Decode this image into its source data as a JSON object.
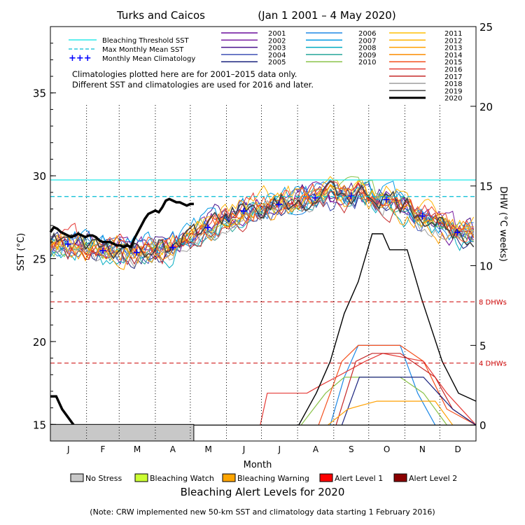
{
  "chart_data": {
    "type": "line",
    "title": "Turks and Caicos",
    "date_range": "(Jan 1 2001 – 4 May 2020)",
    "xlabel": "Month",
    "ylabel_left": "SST (°C)",
    "ylabel_right": "DHW (°C weeks)",
    "x_categories": [
      "J",
      "F",
      "M",
      "A",
      "M",
      "J",
      "J",
      "A",
      "S",
      "O",
      "N",
      "D"
    ],
    "y_left_ticks": [
      15,
      20,
      25,
      30,
      35
    ],
    "ylim_left": [
      14,
      39
    ],
    "y_right_ticks": [
      0,
      5,
      10,
      15,
      20,
      25
    ],
    "ylim_right": [
      -1,
      25
    ],
    "reference_lines": {
      "bleaching_threshold_sst": 29.75,
      "max_monthly_mean_sst": 28.75,
      "dhw_8": 22.4,
      "dhw_4": 18.7,
      "dhw_8_label": "8 DHWs",
      "dhw_4_label": "4 DHWs"
    },
    "legend_left": {
      "threshold": "Bleaching Threshold SST",
      "mmm": "Max Monthly Mean SST",
      "climatology": "Monthly Mean Climatology"
    },
    "notes": [
      "Climatologies plotted here are for 2001–2015 data only.",
      "Different SST and climatologies are used for 2016 and later."
    ],
    "series": [
      {
        "name": "2001",
        "color": "#6a0d9c"
      },
      {
        "name": "2002",
        "color": "#7b1fa2"
      },
      {
        "name": "2003",
        "color": "#4a148c"
      },
      {
        "name": "2004",
        "color": "#3f51b5"
      },
      {
        "name": "2005",
        "color": "#1a237e"
      },
      {
        "name": "2006",
        "color": "#1e88e5"
      },
      {
        "name": "2007",
        "color": "#039be5"
      },
      {
        "name": "2008",
        "color": "#00acc1"
      },
      {
        "name": "2009",
        "color": "#26a69a"
      },
      {
        "name": "2010",
        "color": "#8bc34a"
      },
      {
        "name": "2011",
        "color": "#ffc107"
      },
      {
        "name": "2012",
        "color": "#ffb300"
      },
      {
        "name": "2013",
        "color": "#ffa000"
      },
      {
        "name": "2014",
        "color": "#fb8c00"
      },
      {
        "name": "2015",
        "color": "#f4511e"
      },
      {
        "name": "2016",
        "color": "#e53935"
      },
      {
        "name": "2017",
        "color": "#c62828"
      },
      {
        "name": "2018",
        "color": "#9e9e9e"
      },
      {
        "name": "2019",
        "color": "#424242"
      },
      {
        "name": "2020",
        "color": "#000000"
      }
    ],
    "climatology_points": [
      {
        "month": "J",
        "sst": 25.9
      },
      {
        "month": "F",
        "sst": 25.5
      },
      {
        "month": "M",
        "sst": 25.4
      },
      {
        "month": "A",
        "sst": 25.7
      },
      {
        "month": "M",
        "sst": 26.9
      },
      {
        "month": "J",
        "sst": 27.9
      },
      {
        "month": "J",
        "sst": 28.3
      },
      {
        "month": "A",
        "sst": 28.7
      },
      {
        "month": "S",
        "sst": 28.8
      },
      {
        "month": "O",
        "sst": 28.6
      },
      {
        "month": "N",
        "sst": 27.6
      },
      {
        "month": "D",
        "sst": 26.6
      }
    ],
    "sst_2020": [
      [
        0,
        26.6
      ],
      [
        3,
        26.9
      ],
      [
        6,
        26.8
      ],
      [
        9,
        26.6
      ],
      [
        12,
        26.5
      ],
      [
        15,
        26.4
      ],
      [
        18,
        26.3
      ],
      [
        21,
        26.4
      ],
      [
        24,
        26.5
      ],
      [
        27,
        26.4
      ],
      [
        30,
        26.3
      ],
      [
        33,
        26.4
      ],
      [
        36,
        26.4
      ],
      [
        39,
        26.3
      ],
      [
        42,
        26.1
      ],
      [
        45,
        26.0
      ],
      [
        48,
        26.0
      ],
      [
        51,
        26.0
      ],
      [
        54,
        25.9
      ],
      [
        57,
        25.8
      ],
      [
        60,
        25.8
      ],
      [
        63,
        25.7
      ],
      [
        66,
        25.8
      ],
      [
        69,
        25.7
      ],
      [
        72,
        26.2
      ],
      [
        75,
        26.6
      ],
      [
        78,
        27.0
      ],
      [
        81,
        27.4
      ],
      [
        84,
        27.7
      ],
      [
        87,
        27.8
      ],
      [
        90,
        27.9
      ],
      [
        93,
        27.8
      ],
      [
        96,
        28.1
      ],
      [
        99,
        28.5
      ],
      [
        102,
        28.6
      ],
      [
        105,
        28.5
      ],
      [
        108,
        28.4
      ],
      [
        111,
        28.4
      ],
      [
        114,
        28.3
      ],
      [
        117,
        28.2
      ],
      [
        120,
        28.3
      ],
      [
        123,
        28.3
      ]
    ],
    "dhw_2019": [
      [
        213,
        0
      ],
      [
        228,
        2
      ],
      [
        240,
        4
      ],
      [
        252,
        7
      ],
      [
        264,
        9
      ],
      [
        276,
        12
      ],
      [
        285,
        12
      ],
      [
        291,
        11
      ],
      [
        306,
        11
      ],
      [
        318,
        8
      ],
      [
        336,
        4
      ],
      [
        350,
        2
      ],
      [
        365,
        1.5
      ]
    ],
    "dhw_2020": [
      [
        0,
        1.8
      ],
      [
        5,
        1.8
      ],
      [
        10,
        1
      ],
      [
        20,
        0
      ]
    ],
    "alert_levels_2020_legend": [
      {
        "label": "No Stress",
        "color": "#c8c8c8"
      },
      {
        "label": "Bleaching Watch",
        "color": "#ccff33"
      },
      {
        "label": "Bleaching Warning",
        "color": "#ffa500"
      },
      {
        "label": "Alert Level 1",
        "color": "#ff0000"
      },
      {
        "label": "Alert Level 2",
        "color": "#8b0000"
      }
    ],
    "alert_bar_2020": {
      "status": "No Stress",
      "from_day": 0,
      "to_day": 123
    },
    "alert_title": "Bleaching Alert Levels for 2020",
    "footnote": "(Note: CRW implemented new 50-km SST and climatology data starting 1 February 2016)"
  }
}
